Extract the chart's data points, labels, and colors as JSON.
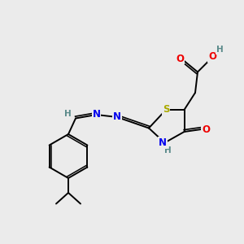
{
  "bg_color": "#ebebeb",
  "atom_colors": {
    "C": "#000000",
    "H": "#5a8a8a",
    "N": "#0000ee",
    "O": "#ee0000",
    "S": "#aaaa00"
  },
  "bond_color": "#000000",
  "font_size": 8.5,
  "fig_size": [
    3.0,
    3.0
  ],
  "dpi": 100
}
